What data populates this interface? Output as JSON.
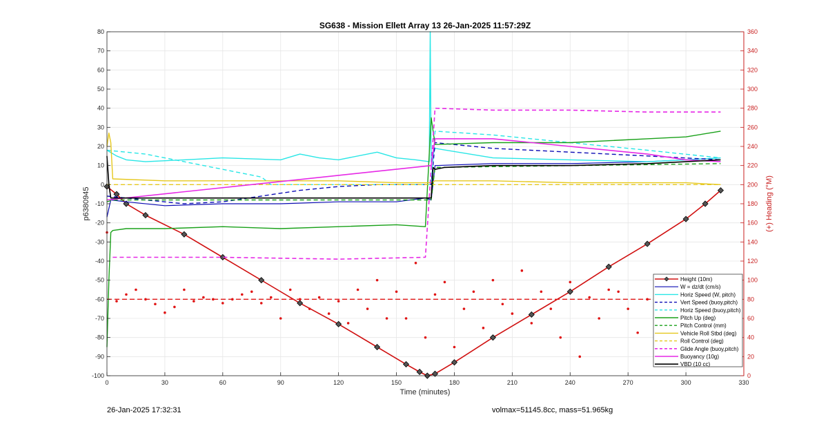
{
  "chart_data": {
    "type": "line",
    "title": "SG638 - Mission Ellett Array 13 26-Jan-2025 11:57:29Z",
    "xlabel": "Time (minutes)",
    "ylabel_left": "p6380945",
    "ylabel_right": "(+) Heading (°M)",
    "xlim": [
      0,
      330
    ],
    "ylim_left": [
      -100,
      80
    ],
    "ylim_right": [
      0,
      360
    ],
    "xticks": [
      0,
      30,
      60,
      90,
      120,
      150,
      180,
      210,
      240,
      270,
      300,
      330
    ],
    "yticks_left": [
      -100,
      -90,
      -80,
      -70,
      -60,
      -50,
      -40,
      -30,
      -20,
      -10,
      0,
      10,
      20,
      30,
      40,
      50,
      60,
      70,
      80
    ],
    "yticks_right": [
      0,
      20,
      40,
      60,
      80,
      100,
      120,
      140,
      160,
      180,
      200,
      220,
      240,
      260,
      280,
      300,
      320,
      340,
      360
    ],
    "grid": true,
    "legend_position": "bottom-right",
    "colors": {
      "right_axis": "#c81e1e",
      "height": "#d01010",
      "w": "#0a0ab4",
      "horiz_speed": "#28e6e6",
      "vert_speed": "#0a0ab4",
      "horiz_speed_buoy": "#28e6e6",
      "pitch_up": "#18a018",
      "pitch_control": "#18a018",
      "roll": "#e6c81e",
      "roll_control": "#e6c81e",
      "glide_angle": "#e628e6",
      "buoyancy": "#e628e6",
      "vbd": "#000000",
      "heading": "#e01414"
    },
    "series": [
      {
        "name": "Height (10m)",
        "color": "#d01010",
        "dash": "solid",
        "width": 1.6,
        "marker": "diamond",
        "x": [
          0,
          5,
          10,
          20,
          40,
          60,
          80,
          100,
          120,
          140,
          155,
          162,
          166,
          170,
          180,
          200,
          220,
          240,
          260,
          280,
          300,
          310,
          318
        ],
        "y": [
          -1,
          -5,
          -10,
          -16,
          -26,
          -38,
          -50,
          -62,
          -73,
          -85,
          -94,
          -98,
          -100,
          -99,
          -93,
          -80,
          -68,
          -56,
          -43,
          -31,
          -18,
          -10,
          -3
        ]
      },
      {
        "name": "W = dz/dt (cm/s)",
        "color": "#0a0ab4",
        "dash": "solid",
        "width": 1.2,
        "x": [
          0,
          2,
          10,
          30,
          60,
          90,
          120,
          150,
          165,
          168,
          170,
          200,
          240,
          280,
          300,
          318
        ],
        "y": [
          -17,
          -8,
          -9,
          -11,
          -10,
          -10,
          -9,
          -9,
          -7,
          -8,
          10,
          11,
          11,
          12,
          13,
          14
        ]
      },
      {
        "name": "Horiz Speed (W, pitch)",
        "color": "#28e6e6",
        "dash": "solid",
        "width": 1.4,
        "x": [
          0,
          5,
          10,
          20,
          40,
          60,
          90,
          100,
          110,
          120,
          140,
          150,
          160,
          167,
          167.5,
          168,
          170,
          200,
          240,
          280,
          300,
          318
        ],
        "y": [
          18,
          15,
          13,
          12,
          13,
          14,
          13,
          16,
          14,
          13,
          17,
          14,
          13,
          12,
          80,
          12,
          19,
          14,
          13,
          12,
          13,
          14
        ]
      },
      {
        "name": "Vert Speed (buoy,pitch)",
        "color": "#0a0ab4",
        "dash": "dashed",
        "width": 1.4,
        "x": [
          0,
          20,
          40,
          60,
          80,
          100,
          120,
          140,
          160,
          168,
          170,
          200,
          240,
          280,
          318
        ],
        "y": [
          -6,
          -8,
          -10,
          -9,
          -6,
          -3,
          -1,
          0,
          0,
          0,
          22,
          19,
          17,
          15,
          13
        ]
      },
      {
        "name": "Horiz Speed (buoy,pitch)",
        "color": "#28e6e6",
        "dash": "dashed",
        "width": 1.4,
        "x": [
          0,
          20,
          40,
          60,
          80,
          85,
          168,
          170,
          200,
          240,
          280,
          318
        ],
        "y": [
          18,
          16,
          12,
          8,
          4,
          0,
          0,
          28,
          26,
          22,
          18,
          14
        ]
      },
      {
        "name": "Pitch Up (deg)",
        "color": "#18a018",
        "dash": "solid",
        "width": 1.4,
        "x": [
          0,
          1,
          2,
          3,
          10,
          30,
          60,
          90,
          120,
          150,
          165,
          168,
          170,
          200,
          240,
          280,
          300,
          318
        ],
        "y": [
          -85,
          -50,
          -25,
          -24,
          -23,
          -23,
          -22,
          -23,
          -22,
          -21,
          -22,
          35,
          21,
          22,
          22,
          24,
          25,
          28
        ]
      },
      {
        "name": "Pitch Control (mm)",
        "color": "#18a018",
        "dash": "dashed",
        "width": 1.4,
        "x": [
          0,
          3,
          168,
          170,
          318
        ],
        "y": [
          -9,
          -8,
          -8,
          9,
          11
        ]
      },
      {
        "name": "Vehicle Roll Stbd (deg)",
        "color": "#e6c81e",
        "dash": "solid",
        "width": 1.4,
        "x": [
          0,
          1,
          2,
          3,
          30,
          60,
          90,
          120,
          150,
          168,
          170,
          200,
          240,
          280,
          300,
          318
        ],
        "y": [
          20,
          27,
          22,
          3,
          2,
          2,
          2,
          2,
          1,
          1,
          2,
          2,
          1,
          1,
          1,
          0
        ]
      },
      {
        "name": "Roll Control (deg)",
        "color": "#e6c81e",
        "dash": "dashed",
        "width": 1.4,
        "x": [
          0,
          168,
          170,
          318
        ],
        "y": [
          0,
          0,
          0,
          0
        ]
      },
      {
        "name": "Glide Angle (buoy,pitch)",
        "color": "#e628e6",
        "dash": "dashed",
        "width": 1.6,
        "x": [
          3,
          60,
          120,
          165,
          170,
          200,
          240,
          280,
          318
        ],
        "y": [
          -38,
          -38,
          -39,
          -38,
          40,
          39,
          39,
          38,
          38
        ]
      },
      {
        "name": "Buoyancy (10g)",
        "color": "#e628e6",
        "dash": "solid",
        "width": 1.6,
        "x": [
          0,
          168,
          170,
          200,
          240,
          280,
          300,
          318
        ],
        "y": [
          -8,
          10,
          24,
          24,
          20,
          16,
          13,
          12
        ]
      },
      {
        "name": "VBD (10 cc)",
        "color": "#000000",
        "dash": "solid",
        "width": 1.6,
        "x": [
          0,
          1,
          2,
          10,
          30,
          60,
          90,
          120,
          150,
          168,
          169,
          170,
          175,
          200,
          240,
          280,
          300,
          318
        ],
        "y": [
          15,
          0,
          -7,
          -7,
          -7,
          -7,
          -7,
          -7,
          -7,
          -7,
          9,
          8,
          9,
          10,
          10,
          11,
          12,
          13
        ]
      }
    ],
    "heading": {
      "name": "Heading",
      "color": "#e01414",
      "target": 80,
      "x": [
        0,
        5,
        10,
        15,
        20,
        25,
        30,
        35,
        40,
        45,
        50,
        55,
        60,
        65,
        70,
        75,
        80,
        85,
        90,
        95,
        100,
        105,
        110,
        115,
        120,
        125,
        130,
        135,
        140,
        145,
        150,
        155,
        160,
        165,
        170,
        175,
        180,
        185,
        190,
        195,
        200,
        205,
        210,
        215,
        220,
        225,
        230,
        235,
        240,
        245,
        250,
        255,
        260,
        265,
        270,
        275,
        280,
        285,
        290,
        295,
        300,
        305,
        310,
        315
      ],
      "y": [
        150,
        78,
        85,
        90,
        80,
        75,
        66,
        72,
        90,
        78,
        82,
        80,
        76,
        80,
        85,
        88,
        76,
        82,
        60,
        90,
        80,
        70,
        82,
        65,
        78,
        55,
        90,
        70,
        100,
        60,
        88,
        60,
        118,
        40,
        85,
        98,
        30,
        70,
        88,
        50,
        100,
        75,
        65,
        110,
        55,
        88,
        70,
        40,
        98,
        20,
        82,
        60,
        90,
        88,
        70,
        45,
        80,
        62,
        88,
        75,
        60,
        80,
        82,
        88
      ]
    }
  },
  "footer": {
    "timestamp": "26-Jan-2025 17:32:31",
    "info": "volmax=51145.8cc, mass=51.965kg"
  }
}
